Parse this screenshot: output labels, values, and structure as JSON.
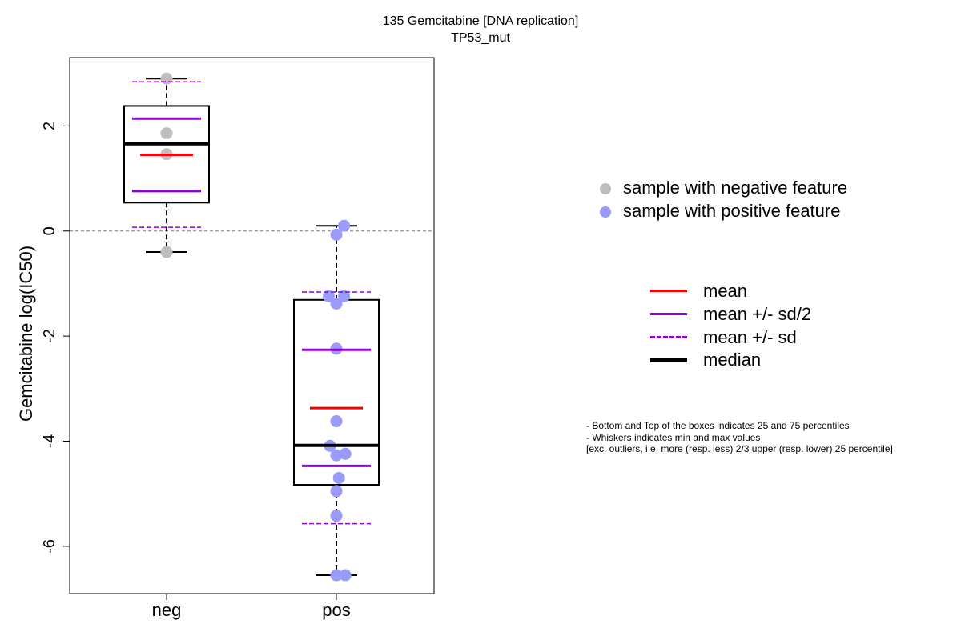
{
  "chart_data": {
    "type": "boxplot",
    "title": "135 Gemcitabine [DNA replication]",
    "subtitle": "TP53_mut",
    "ylabel": "Gemcitabine log(IC50)",
    "categories": [
      "neg",
      "pos"
    ],
    "ylim": [
      -6.9,
      3.3
    ],
    "yticks": [
      -6,
      -4,
      -2,
      0,
      2
    ],
    "reference_line": 0,
    "groups": [
      {
        "category": "neg",
        "color": "#bebebe",
        "box": {
          "q1": 0.54,
          "median": 1.66,
          "q3": 2.38,
          "min": -0.4,
          "max": 2.9
        },
        "mean": 1.45,
        "mean_plus_half_sd": 2.14,
        "mean_minus_half_sd": 0.76,
        "mean_plus_sd": 2.84,
        "mean_minus_sd": 0.07,
        "points": [
          {
            "x": 0.0,
            "y": 2.9
          },
          {
            "x": 0.0,
            "y": 1.86
          },
          {
            "x": 0.0,
            "y": 1.46
          },
          {
            "x": 0.0,
            "y": -0.4
          }
        ]
      },
      {
        "category": "pos",
        "color": "#9a9af8",
        "box": {
          "q1": -4.83,
          "median": -4.08,
          "q3": -1.31,
          "min": -6.55,
          "max": 0.1
        },
        "mean": -3.37,
        "mean_plus_half_sd": -2.26,
        "mean_minus_half_sd": -4.47,
        "mean_plus_sd": -1.16,
        "mean_minus_sd": -5.57,
        "points": [
          {
            "x": 0.06,
            "y": 0.1
          },
          {
            "x": 0.0,
            "y": -0.07
          },
          {
            "x": -0.06,
            "y": -1.24
          },
          {
            "x": 0.06,
            "y": -1.24
          },
          {
            "x": 0.0,
            "y": -1.38
          },
          {
            "x": 0.0,
            "y": -2.24
          },
          {
            "x": 0.0,
            "y": -3.62
          },
          {
            "x": -0.05,
            "y": -4.09
          },
          {
            "x": 0.0,
            "y": -4.27
          },
          {
            "x": 0.07,
            "y": -4.24
          },
          {
            "x": 0.02,
            "y": -4.7
          },
          {
            "x": 0.0,
            "y": -4.95
          },
          {
            "x": 0.0,
            "y": -5.42
          },
          {
            "x": 0.0,
            "y": -6.55
          },
          {
            "x": 0.07,
            "y": -6.55
          }
        ]
      }
    ],
    "colors": {
      "mean": "#ff0000",
      "sd": "#9400d3",
      "median": "#000000",
      "reference": "#7f7f7f"
    }
  },
  "legend_points": [
    {
      "label": "sample with negative feature",
      "color": "#bebebe"
    },
    {
      "label": "sample with positive feature",
      "color": "#9a9af8"
    }
  ],
  "legend_lines": [
    {
      "label": "mean",
      "color": "#ff0000",
      "style": "solid",
      "weight": "normal"
    },
    {
      "label": "mean +/- sd/2",
      "color": "#9400d3",
      "style": "solid",
      "weight": "normal"
    },
    {
      "label": "mean +/- sd",
      "color": "#9400d3",
      "style": "dashed",
      "weight": "normal"
    },
    {
      "label": "median",
      "color": "#000000",
      "style": "solid",
      "weight": "thick"
    }
  ],
  "notes": [
    "- Bottom and Top of the boxes indicates 25 and 75 percentiles",
    "- Whiskers indicates min and max values",
    "[exc. outliers, i.e. more (resp. less) 2/3 upper (resp. lower) 25 percentile]"
  ]
}
